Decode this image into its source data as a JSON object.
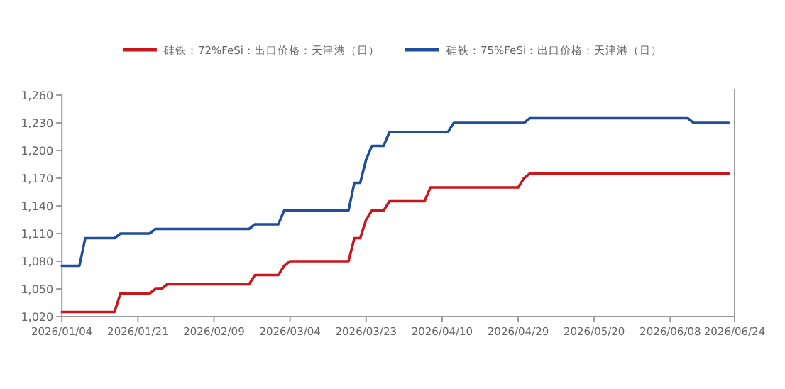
{
  "chart_data": {
    "type": "line",
    "legend": "top",
    "categories": [
      "2026/01/04",
      null,
      null,
      null,
      null,
      null,
      null,
      null,
      null,
      null,
      null,
      null,
      null,
      "2026/01/21",
      null,
      null,
      null,
      null,
      null,
      null,
      null,
      null,
      null,
      null,
      null,
      null,
      "2026/02/09",
      null,
      null,
      null,
      null,
      null,
      null,
      null,
      null,
      null,
      null,
      null,
      null,
      "2026/03/04",
      null,
      null,
      null,
      null,
      null,
      null,
      null,
      null,
      null,
      null,
      null,
      null,
      "2026/03/23",
      null,
      null,
      null,
      null,
      null,
      null,
      null,
      null,
      null,
      null,
      null,
      null,
      "2026/04/10",
      null,
      null,
      null,
      null,
      null,
      null,
      null,
      null,
      null,
      null,
      null,
      null,
      "2026/04/29",
      null,
      null,
      null,
      null,
      null,
      null,
      null,
      null,
      null,
      null,
      null,
      null,
      "2026/05/20",
      null,
      null,
      null,
      null,
      null,
      null,
      null,
      null,
      null,
      null,
      null,
      null,
      "2026/06/08",
      null,
      null,
      null,
      null,
      null,
      null,
      null,
      null,
      null,
      null,
      "2026/06/24"
    ],
    "ylim": [
      1020,
      1260
    ],
    "yticks": [
      {
        "value": 1020,
        "label": "1,020"
      },
      {
        "value": 1050,
        "label": "1,050"
      },
      {
        "value": 1080,
        "label": "1,080"
      },
      {
        "value": 1110,
        "label": "1,110"
      },
      {
        "value": 1140,
        "label": "1,140"
      },
      {
        "value": 1170,
        "label": "1,170"
      },
      {
        "value": 1200,
        "label": "1,200"
      },
      {
        "value": 1230,
        "label": "1,230"
      },
      {
        "value": 1260,
        "label": "1,260"
      }
    ],
    "series": [
      {
        "name": "硅铁：72%FeSi：出口价格：天津港（日）",
        "color": "#c8161d",
        "values": [
          1025,
          1025,
          1025,
          1025,
          1025,
          1025,
          1025,
          1025,
          1025,
          1025,
          1045,
          1045,
          1045,
          1045,
          1045,
          1045,
          1050,
          1050,
          1055,
          1055,
          1055,
          1055,
          1055,
          1055,
          1055,
          1055,
          1055,
          1055,
          1055,
          1055,
          1055,
          1055,
          1055,
          1065,
          1065,
          1065,
          1065,
          1065,
          1075,
          1080,
          1080,
          1080,
          1080,
          1080,
          1080,
          1080,
          1080,
          1080,
          1080,
          1080,
          1105,
          1105,
          1125,
          1135,
          1135,
          1135,
          1145,
          1145,
          1145,
          1145,
          1145,
          1145,
          1145,
          1160,
          1160,
          1160,
          1160,
          1160,
          1160,
          1160,
          1160,
          1160,
          1160,
          1160,
          1160,
          1160,
          1160,
          1160,
          1160,
          1170,
          1175,
          1175,
          1175,
          1175,
          1175,
          1175,
          1175,
          1175,
          1175,
          1175,
          1175,
          1175,
          1175,
          1175,
          1175,
          1175,
          1175,
          1175,
          1175,
          1175,
          1175,
          1175,
          1175,
          1175,
          1175,
          1175,
          1175,
          1175,
          1175,
          1175,
          1175,
          1175,
          1175,
          1175,
          1175,
          null
        ]
      },
      {
        "name": "硅铁：75%FeSi：出口价格：天津港（日）",
        "color": "#1f4e9a",
        "values": [
          1075,
          1075,
          1075,
          1075,
          1105,
          1105,
          1105,
          1105,
          1105,
          1105,
          1110,
          1110,
          1110,
          1110,
          1110,
          1110,
          1115,
          1115,
          1115,
          1115,
          1115,
          1115,
          1115,
          1115,
          1115,
          1115,
          1115,
          1115,
          1115,
          1115,
          1115,
          1115,
          1115,
          1120,
          1120,
          1120,
          1120,
          1120,
          1135,
          1135,
          1135,
          1135,
          1135,
          1135,
          1135,
          1135,
          1135,
          1135,
          1135,
          1135,
          1165,
          1165,
          1190,
          1205,
          1205,
          1205,
          1220,
          1220,
          1220,
          1220,
          1220,
          1220,
          1220,
          1220,
          1220,
          1220,
          1220,
          1230,
          1230,
          1230,
          1230,
          1230,
          1230,
          1230,
          1230,
          1230,
          1230,
          1230,
          1230,
          1230,
          1235,
          1235,
          1235,
          1235,
          1235,
          1235,
          1235,
          1235,
          1235,
          1235,
          1235,
          1235,
          1235,
          1235,
          1235,
          1235,
          1235,
          1235,
          1235,
          1235,
          1235,
          1235,
          1235,
          1235,
          1235,
          1235,
          1235,
          1235,
          1230,
          1230,
          1230,
          1230,
          1230,
          1230,
          1230,
          null
        ]
      }
    ]
  }
}
